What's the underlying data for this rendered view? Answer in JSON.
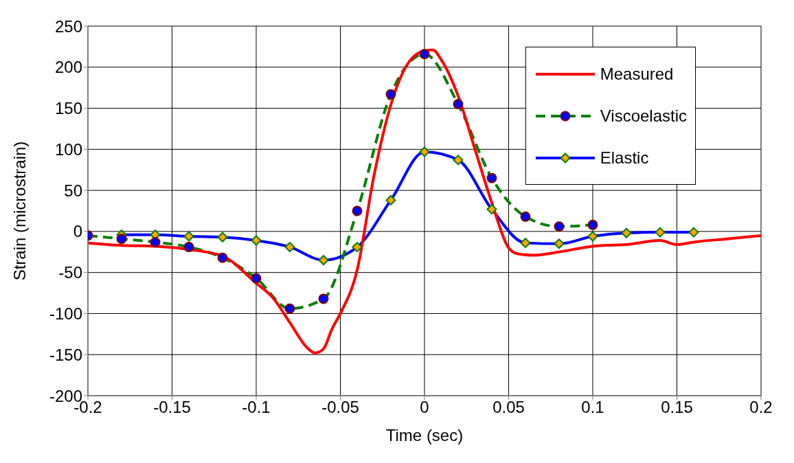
{
  "chart_data": {
    "type": "line",
    "xlabel": "Time (sec)",
    "ylabel": "Strain (microstrain)",
    "xlim": [
      -0.2,
      0.2
    ],
    "xticks": [
      -0.2,
      -0.15,
      -0.1,
      -0.05,
      0,
      0.05,
      0.1,
      0.15,
      0.2
    ],
    "ylim": [
      -200,
      250
    ],
    "yticks": [
      -200,
      -150,
      -100,
      -50,
      0,
      50,
      100,
      150,
      200,
      250
    ],
    "grid": true,
    "legend": "top right",
    "series": [
      {
        "name": "Measured",
        "color": "#ff0000",
        "marker": "none",
        "line_style": "solid",
        "x": [
          -0.2,
          -0.18,
          -0.16,
          -0.14,
          -0.12,
          -0.1,
          -0.09,
          -0.08,
          -0.07,
          -0.065,
          -0.06,
          -0.055,
          -0.05,
          -0.04,
          -0.03,
          -0.02,
          -0.01,
          0,
          0.005,
          0.01,
          0.02,
          0.03,
          0.04,
          0.05,
          0.055,
          0.065,
          0.08,
          0.1,
          0.12,
          0.14,
          0.15,
          0.16,
          0.18,
          0.2
        ],
        "values": [
          -14,
          -17,
          -18,
          -22,
          -30,
          -63,
          -81,
          -111,
          -141,
          -148,
          -143,
          -119,
          -100,
          -47,
          68,
          154,
          204,
          220,
          221,
          209,
          165,
          100,
          35,
          -20,
          -27,
          -29,
          -25,
          -18,
          -16,
          -11,
          -16,
          -13,
          -9,
          -5
        ]
      },
      {
        "name": "Viscoelastic",
        "color": "#008000",
        "marker": "circle",
        "line_style": "dashed",
        "x": [
          -0.2,
          -0.18,
          -0.16,
          -0.14,
          -0.12,
          -0.1,
          -0.08,
          -0.06,
          -0.04,
          -0.02,
          0,
          0.02,
          0.04,
          0.06,
          0.08,
          0.1
        ],
        "values": [
          -5,
          -9,
          -13,
          -19,
          -32,
          -57,
          -94,
          -82,
          25,
          167,
          216,
          155,
          65,
          18,
          6,
          8
        ]
      },
      {
        "name": "Elastic",
        "color": "#0000ff",
        "marker": "diamond",
        "line_style": "solid",
        "x": [
          -0.18,
          -0.16,
          -0.14,
          -0.12,
          -0.1,
          -0.08,
          -0.06,
          -0.04,
          -0.02,
          0,
          0.02,
          0.04,
          0.06,
          0.08,
          0.1,
          0.12,
          0.14,
          0.16
        ],
        "values": [
          -4,
          -4,
          -6,
          -7,
          -11,
          -19,
          -35,
          -19,
          38,
          97,
          87,
          27,
          -14,
          -15,
          -6,
          -2,
          -1,
          -1
        ]
      }
    ]
  }
}
